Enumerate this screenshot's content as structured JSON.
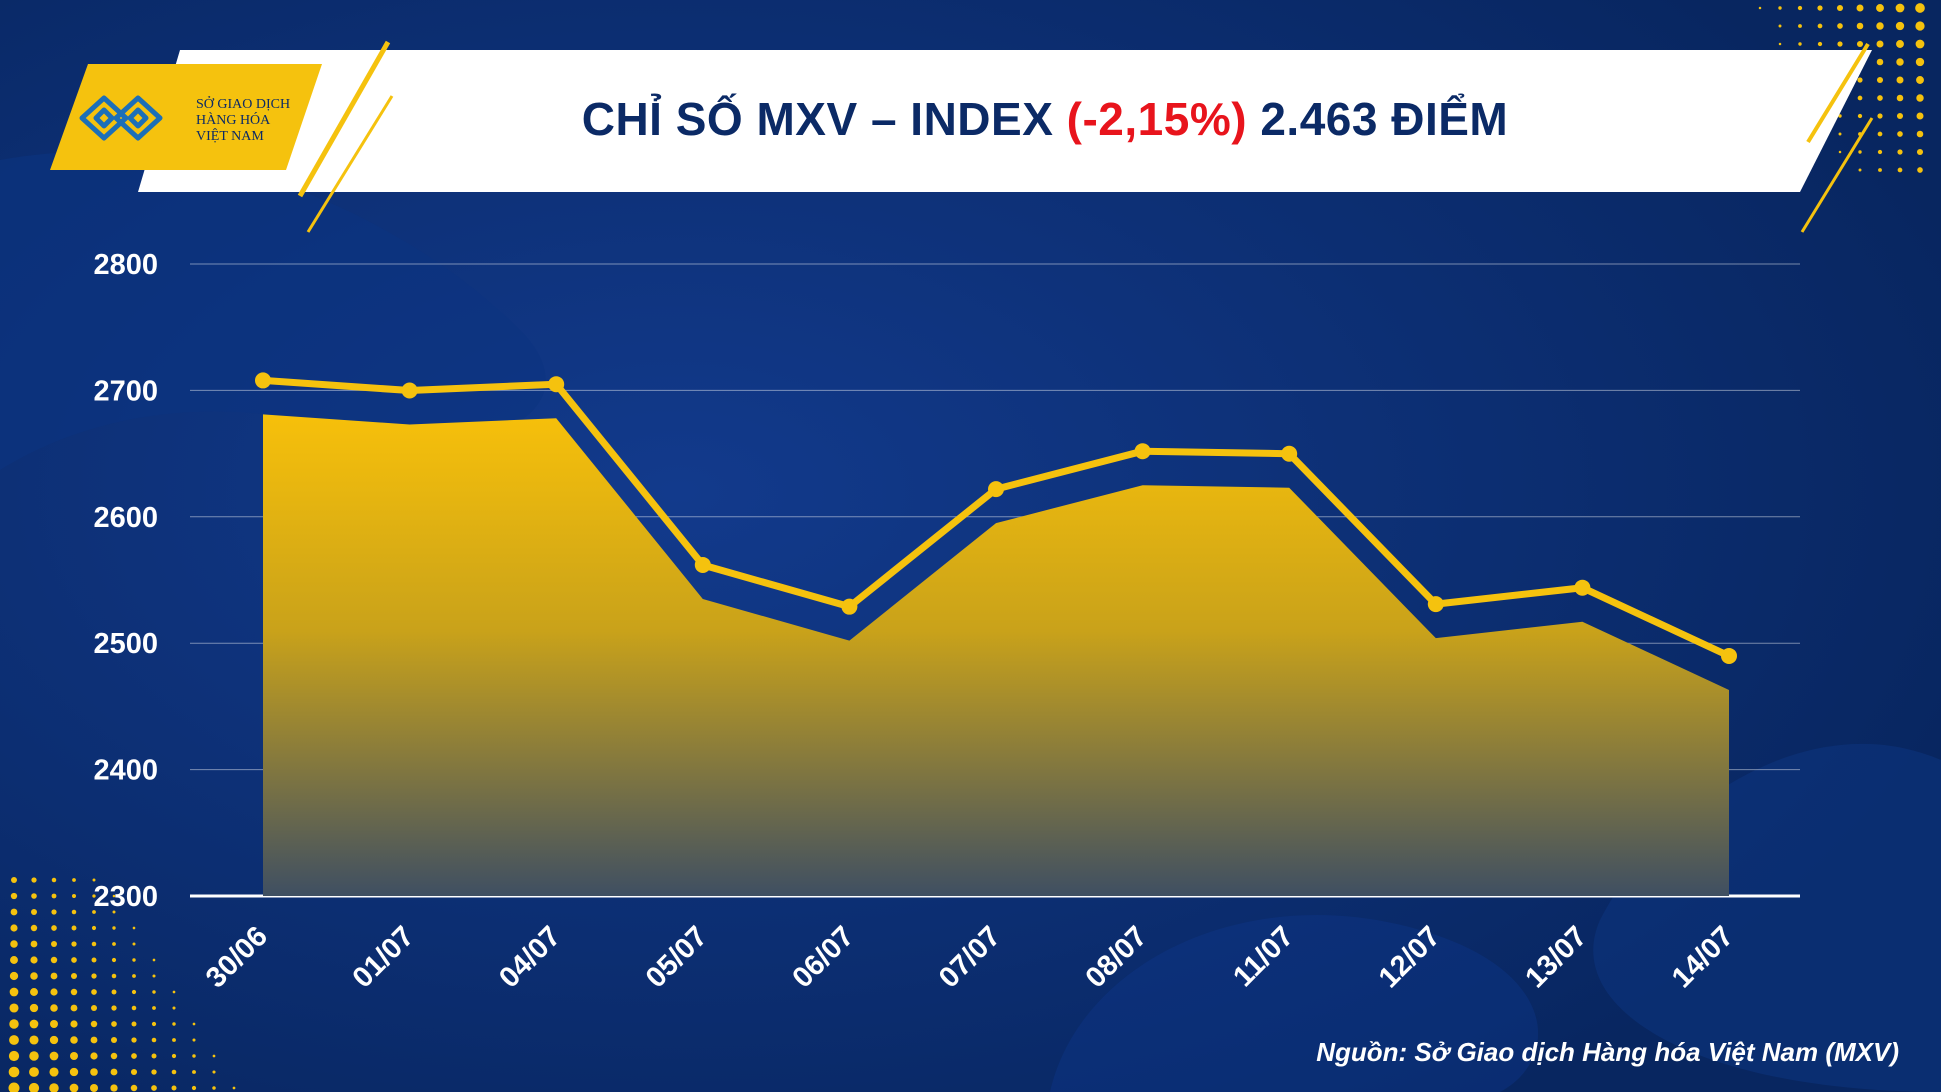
{
  "header": {
    "title_main": "CHỈ SỐ MXV – INDEX",
    "title_change": "(-2,15%)",
    "title_value": "2.463 ĐIỂM"
  },
  "logo": {
    "line1": "SỞ GIAO DỊCH",
    "line2": "HÀNG HÓA",
    "line3": "VIỆT NAM"
  },
  "source": "Nguồn: Sở Giao dịch Hàng hóa Việt Nam (MXV)",
  "colors": {
    "background": "#0a2a6e",
    "accent_yellow": "#f5c20e",
    "title_navy": "#0b2a66",
    "negative_red": "#e8141c"
  },
  "chart_data": {
    "type": "area",
    "title": "CHỈ SỐ MXV – INDEX (-2,15%) 2.463 ĐIỂM",
    "xlabel": "",
    "ylabel": "",
    "ylim": [
      2300,
      2800
    ],
    "yticks": [
      2300,
      2400,
      2500,
      2600,
      2700,
      2800
    ],
    "grid": true,
    "categories": [
      "30/06",
      "01/07",
      "04/07",
      "05/07",
      "06/07",
      "07/07",
      "08/07",
      "11/07",
      "12/07",
      "13/07",
      "14/07"
    ],
    "series": [
      {
        "values": [
          2681,
          2673,
          2678,
          2535,
          2502,
          2595,
          2625,
          2623,
          2504,
          2517,
          2463
        ]
      }
    ]
  }
}
